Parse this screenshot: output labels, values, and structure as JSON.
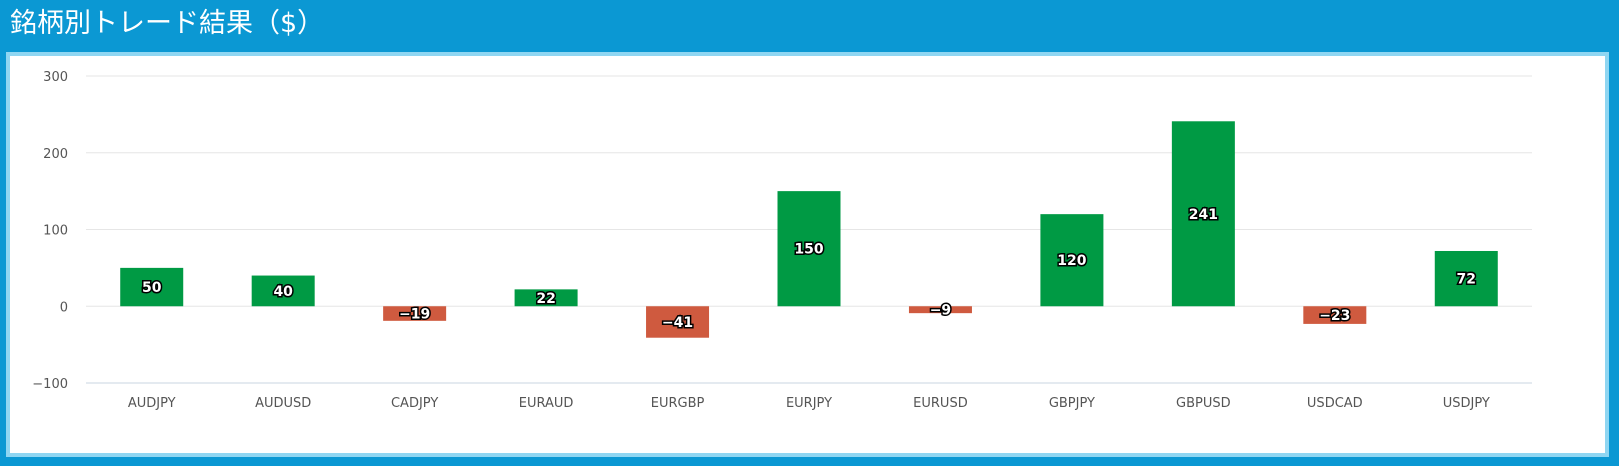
{
  "header": {
    "title": "銘柄別トレード結果（$）"
  },
  "colors": {
    "positive": "#009a44",
    "negative": "#cf5a3f",
    "grid": "#e6e6e6",
    "baseline": "#c9d6e0"
  },
  "chart_data": {
    "type": "bar",
    "title": "銘柄別トレード結果（$）",
    "xlabel": "",
    "ylabel": "",
    "categories": [
      "AUDJPY",
      "AUDUSD",
      "CADJPY",
      "EURAUD",
      "EURGBP",
      "EURJPY",
      "EURUSD",
      "GBPJPY",
      "GBPUSD",
      "USDCAD",
      "USDJPY"
    ],
    "values": [
      50,
      40,
      -19,
      22,
      -41,
      150,
      -9,
      120,
      241,
      -23,
      72
    ],
    "ylim": [
      -100,
      300
    ],
    "yticks": [
      300,
      200,
      100,
      0,
      -100
    ],
    "ytick_labels": [
      "300",
      "200",
      "100",
      "0",
      "−100"
    ],
    "grid": true,
    "data_labels": true
  }
}
